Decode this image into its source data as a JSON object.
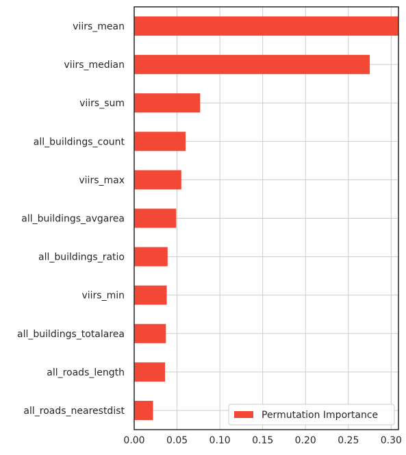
{
  "chart_data": {
    "type": "bar",
    "orientation": "horizontal",
    "categories": [
      "viirs_mean",
      "viirs_median",
      "viirs_sum",
      "all_buildings_count",
      "viirs_max",
      "all_buildings_avgarea",
      "all_buildings_ratio",
      "viirs_min",
      "all_buildings_totalarea",
      "all_roads_length",
      "all_roads_nearestdist"
    ],
    "series": [
      {
        "name": "Permutation Importance",
        "color": "#f44836",
        "values": [
          0.308,
          0.275,
          0.077,
          0.06,
          0.055,
          0.049,
          0.039,
          0.038,
          0.037,
          0.036,
          0.022
        ]
      }
    ],
    "xlim": [
      0,
      0.32
    ],
    "xticks": [
      "0.00",
      "0.05",
      "0.10",
      "0.15",
      "0.20",
      "0.25",
      "0.30"
    ],
    "xtick_values": [
      0,
      0.05,
      0.1,
      0.15,
      0.2,
      0.25,
      0.3
    ],
    "title": "",
    "xlabel": "",
    "ylabel": "",
    "grid": true,
    "legend_position": "bottom-right"
  }
}
